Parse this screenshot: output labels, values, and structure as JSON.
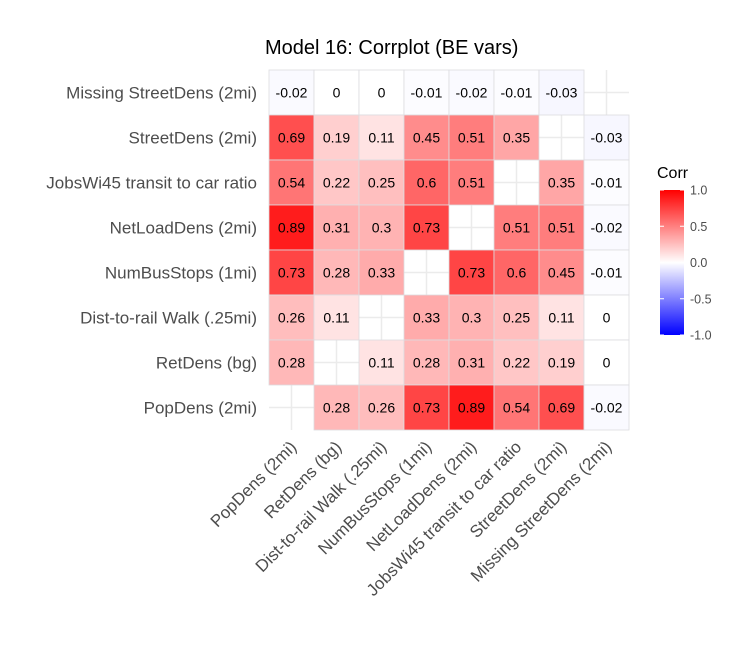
{
  "chart_data": {
    "type": "heatmap",
    "title": "Model 16: Corrplot (BE vars)",
    "x_labels": [
      "PopDens (2mi)",
      "RetDens (bg)",
      "Dist-to-rail Walk (.25mi)",
      "NumBusStops (1mi)",
      "NetLoadDens (2mi)",
      "JobsWi45 transit to car ratio",
      "StreetDens (2mi)",
      "Missing StreetDens (2mi)"
    ],
    "y_labels_top_to_bottom": [
      "Missing StreetDens (2mi)",
      "StreetDens (2mi)",
      "JobsWi45 transit to car ratio",
      "NetLoadDens (2mi)",
      "NumBusStops (1mi)",
      "Dist-to-rail Walk (.25mi)",
      "RetDens (bg)",
      "PopDens (2mi)"
    ],
    "values_top_to_bottom": [
      [
        -0.02,
        0,
        0,
        -0.01,
        -0.02,
        -0.01,
        -0.03,
        null
      ],
      [
        0.69,
        0.19,
        0.11,
        0.45,
        0.51,
        0.35,
        null,
        -0.03
      ],
      [
        0.54,
        0.22,
        0.25,
        0.6,
        0.51,
        null,
        0.35,
        -0.01
      ],
      [
        0.89,
        0.31,
        0.3,
        0.73,
        null,
        0.51,
        0.51,
        -0.02
      ],
      [
        0.73,
        0.28,
        0.33,
        null,
        0.73,
        0.6,
        0.45,
        -0.01
      ],
      [
        0.26,
        0.11,
        null,
        0.33,
        0.3,
        0.25,
        0.11,
        0
      ],
      [
        0.28,
        null,
        0.11,
        0.28,
        0.31,
        0.22,
        0.19,
        0
      ],
      [
        null,
        0.28,
        0.26,
        0.73,
        0.89,
        0.54,
        0.69,
        -0.02
      ]
    ],
    "legend": {
      "title": "Corr",
      "ticks": [
        "1.0",
        "0.5",
        "0.0",
        "-0.5",
        "-1.0"
      ],
      "range": [
        -1,
        1
      ],
      "placement": "right"
    },
    "colors": {
      "low": "#0000ff",
      "mid": "#ffffff",
      "high": "#ff0000"
    },
    "grid": true
  }
}
